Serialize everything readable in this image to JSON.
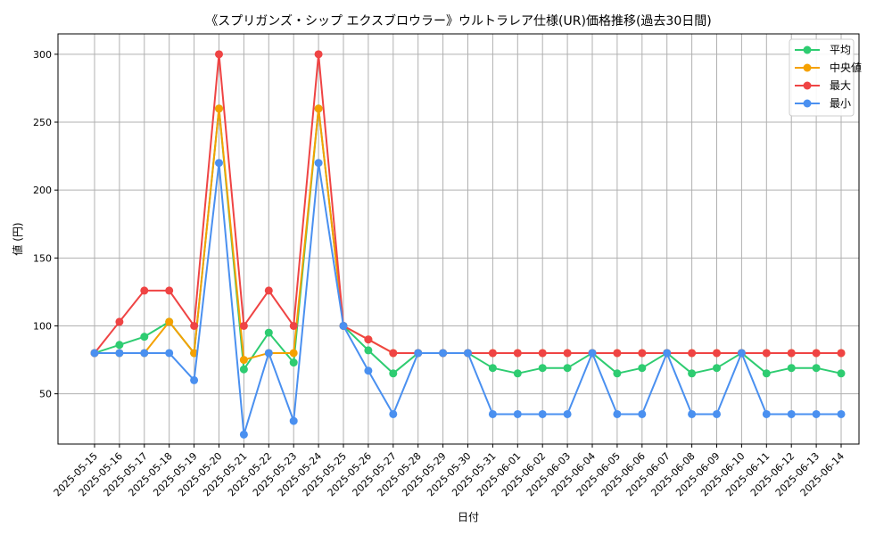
{
  "chart_data": {
    "type": "line",
    "title": "《スプリガンズ・シップ エクスブロウラー》ウルトラレア仕様(UR)価格推移(過去30日間)",
    "xlabel": "日付",
    "ylabel": "値 (円)",
    "ylim": [
      13,
      315
    ],
    "yticks": [
      50,
      100,
      150,
      200,
      250,
      300
    ],
    "grid": true,
    "legend_position": "top-right",
    "categories": [
      "2025-05-15",
      "2025-05-16",
      "2025-05-17",
      "2025-05-18",
      "2025-05-19",
      "2025-05-20",
      "2025-05-21",
      "2025-05-22",
      "2025-05-23",
      "2025-05-24",
      "2025-05-25",
      "2025-05-26",
      "2025-05-27",
      "2025-05-28",
      "2025-05-29",
      "2025-05-30",
      "2025-05-31",
      "2025-06-01",
      "2025-06-02",
      "2025-06-03",
      "2025-06-04",
      "2025-06-05",
      "2025-06-06",
      "2025-06-07",
      "2025-06-08",
      "2025-06-09",
      "2025-06-10",
      "2025-06-11",
      "2025-06-12",
      "2025-06-13",
      "2025-06-14"
    ],
    "series": [
      {
        "name": "平均",
        "color": "#2ecc71",
        "values": [
          80,
          86,
          92,
          103,
          80,
          260,
          68,
          95,
          73,
          260,
          100,
          82,
          65,
          80,
          80,
          80,
          69,
          65,
          69,
          69,
          80,
          65,
          69,
          80,
          65,
          69,
          80,
          65,
          69,
          69,
          65
        ]
      },
      {
        "name": "中央値",
        "color": "#f5a100",
        "values": [
          80,
          80,
          80,
          103,
          80,
          260,
          75,
          80,
          80,
          260,
          100,
          90,
          80,
          80,
          80,
          80,
          80,
          80,
          80,
          80,
          80,
          80,
          80,
          80,
          80,
          80,
          80,
          80,
          80,
          80,
          80
        ]
      },
      {
        "name": "最大",
        "color": "#ef4444",
        "values": [
          80,
          103,
          126,
          126,
          100,
          300,
          100,
          126,
          100,
          300,
          100,
          90,
          80,
          80,
          80,
          80,
          80,
          80,
          80,
          80,
          80,
          80,
          80,
          80,
          80,
          80,
          80,
          80,
          80,
          80,
          80
        ]
      },
      {
        "name": "最小",
        "color": "#4a90f0",
        "values": [
          80,
          80,
          80,
          80,
          60,
          220,
          20,
          80,
          30,
          220,
          100,
          67,
          35,
          80,
          80,
          80,
          35,
          35,
          35,
          35,
          80,
          35,
          35,
          80,
          35,
          35,
          80,
          35,
          35,
          35,
          35
        ]
      }
    ]
  }
}
